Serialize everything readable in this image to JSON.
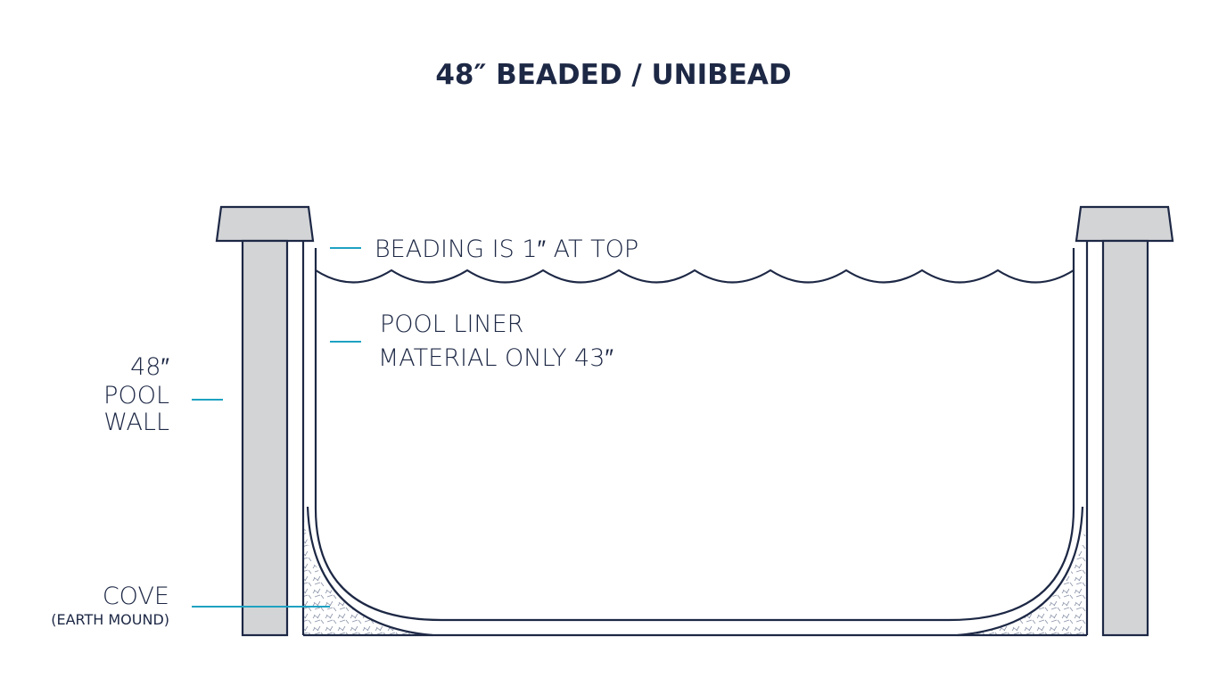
{
  "title": "48″ BEADED / UNIBEAD",
  "labels": {
    "beading": "BEADING IS 1″ AT TOP",
    "liner": [
      "POOL LINER",
      "MATERIAL ONLY 43″"
    ],
    "wall": [
      "48″",
      "POOL",
      "WALL"
    ],
    "cove": {
      "main": "COVE",
      "sub": "(EARTH MOUND)"
    }
  }
}
